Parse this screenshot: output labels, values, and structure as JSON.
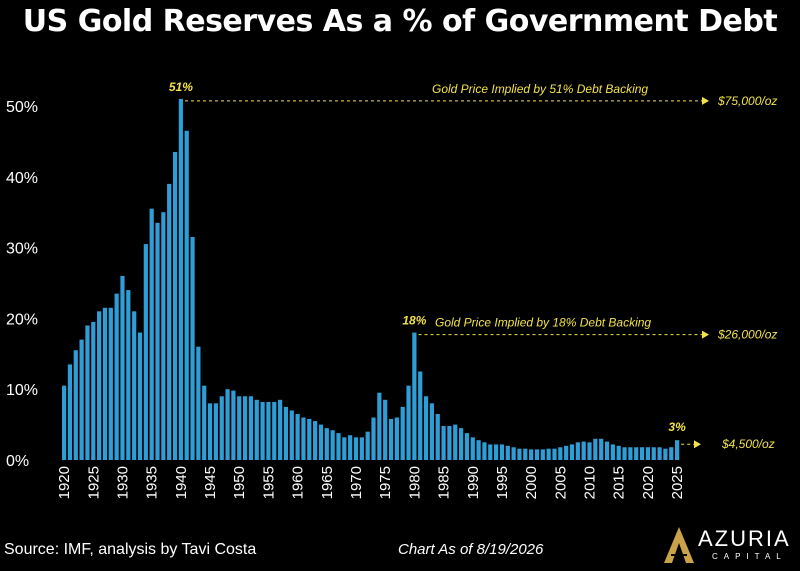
{
  "title": "US Gold Reserves As a % of Government Debt",
  "source": "Source: IMF, analysis by Tavi Costa",
  "chart_date": "Chart As of 8/19/2026",
  "logo": {
    "name": "AZURIA",
    "subtitle": "CAPITAL"
  },
  "colors": {
    "bar": "#2f9ed6",
    "annotation": "#f2e24a",
    "background": "#000000",
    "text": "#ffffff"
  },
  "chart_data": {
    "type": "bar",
    "title": "US Gold Reserves As a % of Government Debt",
    "xlabel": "",
    "ylabel": "",
    "ylim": [
      0,
      55
    ],
    "yticks": [
      "0%",
      "10%",
      "20%",
      "30%",
      "40%",
      "50%"
    ],
    "xticks": [
      "1920",
      "1925",
      "1930",
      "1935",
      "1940",
      "1945",
      "1950",
      "1955",
      "1960",
      "1965",
      "1970",
      "1975",
      "1980",
      "1985",
      "1990",
      "1995",
      "2000",
      "2005",
      "2010",
      "2015",
      "2020",
      "2025"
    ],
    "x": [
      1920,
      1921,
      1922,
      1923,
      1924,
      1925,
      1926,
      1927,
      1928,
      1929,
      1930,
      1931,
      1932,
      1933,
      1934,
      1935,
      1936,
      1937,
      1938,
      1939,
      1940,
      1941,
      1942,
      1943,
      1944,
      1945,
      1946,
      1947,
      1948,
      1949,
      1950,
      1951,
      1952,
      1953,
      1954,
      1955,
      1956,
      1957,
      1958,
      1959,
      1960,
      1961,
      1962,
      1963,
      1964,
      1965,
      1966,
      1967,
      1968,
      1969,
      1970,
      1971,
      1972,
      1973,
      1974,
      1975,
      1976,
      1977,
      1978,
      1979,
      1980,
      1981,
      1982,
      1983,
      1984,
      1985,
      1986,
      1987,
      1988,
      1989,
      1990,
      1991,
      1992,
      1993,
      1994,
      1995,
      1996,
      1997,
      1998,
      1999,
      2000,
      2001,
      2002,
      2003,
      2004,
      2005,
      2006,
      2007,
      2008,
      2009,
      2010,
      2011,
      2012,
      2013,
      2014,
      2015,
      2016,
      2017,
      2018,
      2019,
      2020,
      2021,
      2022,
      2023,
      2024,
      2025
    ],
    "values": [
      10.5,
      13.5,
      15.5,
      17.0,
      19.0,
      19.5,
      21.0,
      21.5,
      21.5,
      23.5,
      26.0,
      24.0,
      21.0,
      18.0,
      30.5,
      35.5,
      33.5,
      35.0,
      39.0,
      43.5,
      51.0,
      46.5,
      31.5,
      16.0,
      10.5,
      8.0,
      8.0,
      9.0,
      10.0,
      9.8,
      9.0,
      9.0,
      9.0,
      8.5,
      8.2,
      8.2,
      8.2,
      8.5,
      7.5,
      7.0,
      6.5,
      6.0,
      5.8,
      5.5,
      5.0,
      4.5,
      4.2,
      3.8,
      3.2,
      3.5,
      3.2,
      3.2,
      4.0,
      6.0,
      9.5,
      8.5,
      5.8,
      6.0,
      7.5,
      10.5,
      18.0,
      12.5,
      9.0,
      8.0,
      6.5,
      4.8,
      4.8,
      5.0,
      4.5,
      3.8,
      3.2,
      2.8,
      2.5,
      2.2,
      2.2,
      2.2,
      2.0,
      1.8,
      1.6,
      1.6,
      1.5,
      1.5,
      1.5,
      1.6,
      1.6,
      1.8,
      2.0,
      2.2,
      2.5,
      2.6,
      2.5,
      3.0,
      3.0,
      2.6,
      2.2,
      2.0,
      1.8,
      1.8,
      1.8,
      1.8,
      1.8,
      1.8,
      1.8,
      1.6,
      1.8,
      2.8
    ],
    "annotations": [
      {
        "year": 1940,
        "value": 51,
        "label": "51%",
        "text": "Gold Price Implied by 51% Debt Backing",
        "price": "$75,000/oz"
      },
      {
        "year": 1980,
        "value": 18,
        "label": "18%",
        "text": "Gold Price Implied by 18% Debt Backing",
        "price": "$26,000/oz"
      },
      {
        "year": 2025,
        "value": 3,
        "label": "3%",
        "text": "",
        "price": "$4,500/oz"
      }
    ],
    "grid": false,
    "legend": "none"
  }
}
